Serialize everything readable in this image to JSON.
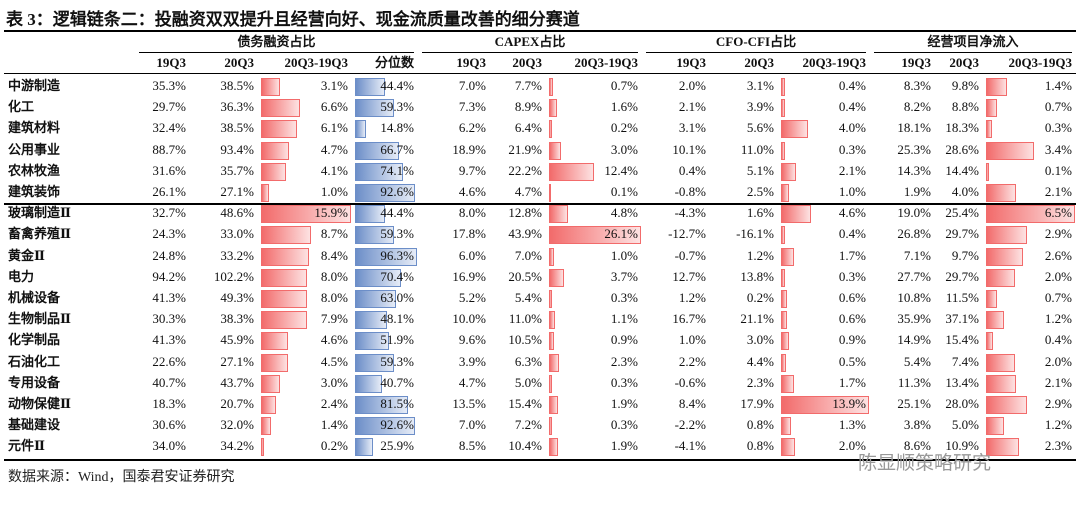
{
  "title": "表 3：逻辑链条二：投融资双双提升且经营向好、现金流质量改善的细分赛道",
  "table": {
    "group_headers": [
      "债务融资占比",
      "CAPEX占比",
      "CFO-CFI占比",
      "经营项目净流入"
    ],
    "sub_headers": [
      "19Q3",
      "20Q3",
      "20Q3-19Q3",
      "分位数",
      "19Q3",
      "20Q3",
      "20Q3-19Q3",
      "19Q3",
      "20Q3",
      "20Q3-19Q3",
      "19Q3",
      "20Q3",
      "20Q3-19Q3"
    ],
    "groups": [
      {
        "rows": [
          {
            "name": "中游制造",
            "cells": [
              "35.3%",
              "38.5%",
              "3.1%",
              "44.4%",
              "7.0%",
              "7.7%",
              "0.7%",
              "2.0%",
              "3.1%",
              "0.4%",
              "8.3%",
              "9.8%",
              "1.4%"
            ]
          },
          {
            "name": "化工",
            "cells": [
              "29.7%",
              "36.3%",
              "6.6%",
              "59.3%",
              "7.3%",
              "8.9%",
              "1.6%",
              "2.1%",
              "3.9%",
              "0.4%",
              "8.2%",
              "8.8%",
              "0.7%"
            ]
          },
          {
            "name": "建筑材料",
            "cells": [
              "32.4%",
              "38.5%",
              "6.1%",
              "14.8%",
              "6.2%",
              "6.4%",
              "0.2%",
              "3.1%",
              "5.6%",
              "4.0%",
              "18.1%",
              "18.3%",
              "0.3%"
            ]
          },
          {
            "name": "公用事业",
            "cells": [
              "88.7%",
              "93.4%",
              "4.7%",
              "66.7%",
              "18.9%",
              "21.9%",
              "3.0%",
              "10.1%",
              "11.0%",
              "0.3%",
              "25.3%",
              "28.6%",
              "3.4%"
            ]
          },
          {
            "name": "农林牧渔",
            "cells": [
              "31.6%",
              "35.7%",
              "4.1%",
              "74.1%",
              "9.7%",
              "22.2%",
              "12.4%",
              "0.4%",
              "5.1%",
              "2.1%",
              "14.3%",
              "14.4%",
              "0.1%"
            ]
          },
          {
            "name": "建筑装饰",
            "cells": [
              "26.1%",
              "27.1%",
              "1.0%",
              "92.6%",
              "4.6%",
              "4.7%",
              "0.1%",
              "-0.8%",
              "2.5%",
              "1.0%",
              "1.9%",
              "4.0%",
              "2.1%"
            ]
          }
        ]
      },
      {
        "rows": [
          {
            "name": "玻璃制造Ⅱ",
            "cells": [
              "32.7%",
              "48.6%",
              "15.9%",
              "44.4%",
              "8.0%",
              "12.8%",
              "4.8%",
              "-4.3%",
              "1.6%",
              "4.6%",
              "19.0%",
              "25.4%",
              "6.5%"
            ]
          },
          {
            "name": "畜禽养殖Ⅱ",
            "cells": [
              "24.3%",
              "33.0%",
              "8.7%",
              "59.3%",
              "17.8%",
              "43.9%",
              "26.1%",
              "-12.7%",
              "-16.1%",
              "0.4%",
              "26.8%",
              "29.7%",
              "2.9%"
            ]
          },
          {
            "name": "黄金Ⅱ",
            "cells": [
              "24.8%",
              "33.2%",
              "8.4%",
              "96.3%",
              "6.0%",
              "7.0%",
              "1.0%",
              "-0.7%",
              "1.2%",
              "1.7%",
              "7.1%",
              "9.7%",
              "2.6%"
            ]
          },
          {
            "name": "电力",
            "cells": [
              "94.2%",
              "102.2%",
              "8.0%",
              "70.4%",
              "16.9%",
              "20.5%",
              "3.7%",
              "12.7%",
              "13.8%",
              "0.3%",
              "27.7%",
              "29.7%",
              "2.0%"
            ]
          },
          {
            "name": "机械设备",
            "cells": [
              "41.3%",
              "49.3%",
              "8.0%",
              "63.0%",
              "5.2%",
              "5.4%",
              "0.3%",
              "1.2%",
              "0.2%",
              "0.6%",
              "10.8%",
              "11.5%",
              "0.7%"
            ]
          },
          {
            "name": "生物制品Ⅱ",
            "cells": [
              "30.3%",
              "38.3%",
              "7.9%",
              "48.1%",
              "10.0%",
              "11.0%",
              "1.1%",
              "16.7%",
              "21.1%",
              "0.6%",
              "35.9%",
              "37.1%",
              "1.2%"
            ]
          },
          {
            "name": "化学制品",
            "cells": [
              "41.3%",
              "45.9%",
              "4.6%",
              "51.9%",
              "9.6%",
              "10.5%",
              "0.9%",
              "1.0%",
              "3.0%",
              "0.9%",
              "14.9%",
              "15.4%",
              "0.4%"
            ]
          },
          {
            "name": "石油化工",
            "cells": [
              "22.6%",
              "27.1%",
              "4.5%",
              "59.3%",
              "3.9%",
              "6.3%",
              "2.3%",
              "2.2%",
              "4.4%",
              "0.5%",
              "5.4%",
              "7.4%",
              "2.0%"
            ]
          },
          {
            "name": "专用设备",
            "cells": [
              "40.7%",
              "43.7%",
              "3.0%",
              "40.7%",
              "4.7%",
              "5.0%",
              "0.3%",
              "-0.6%",
              "2.3%",
              "1.7%",
              "11.3%",
              "13.4%",
              "2.1%"
            ]
          },
          {
            "name": "动物保健Ⅱ",
            "cells": [
              "18.3%",
              "20.7%",
              "2.4%",
              "81.5%",
              "13.5%",
              "15.4%",
              "1.9%",
              "8.4%",
              "17.9%",
              "13.9%",
              "25.1%",
              "28.0%",
              "2.9%"
            ]
          },
          {
            "name": "基础建设",
            "cells": [
              "30.6%",
              "32.0%",
              "1.4%",
              "92.6%",
              "7.0%",
              "7.2%",
              "0.3%",
              "-2.2%",
              "0.8%",
              "1.3%",
              "3.8%",
              "5.0%",
              "1.2%"
            ]
          },
          {
            "name": "元件Ⅱ",
            "cells": [
              "34.0%",
              "34.2%",
              "0.2%",
              "25.9%",
              "8.5%",
              "10.4%",
              "1.9%",
              "-4.1%",
              "0.8%",
              "2.0%",
              "8.6%",
              "10.9%",
              "2.3%"
            ]
          }
        ]
      }
    ]
  },
  "source": "数据来源：Wind，国泰君安证券研究",
  "watermark": "陈显顺策略研究"
}
